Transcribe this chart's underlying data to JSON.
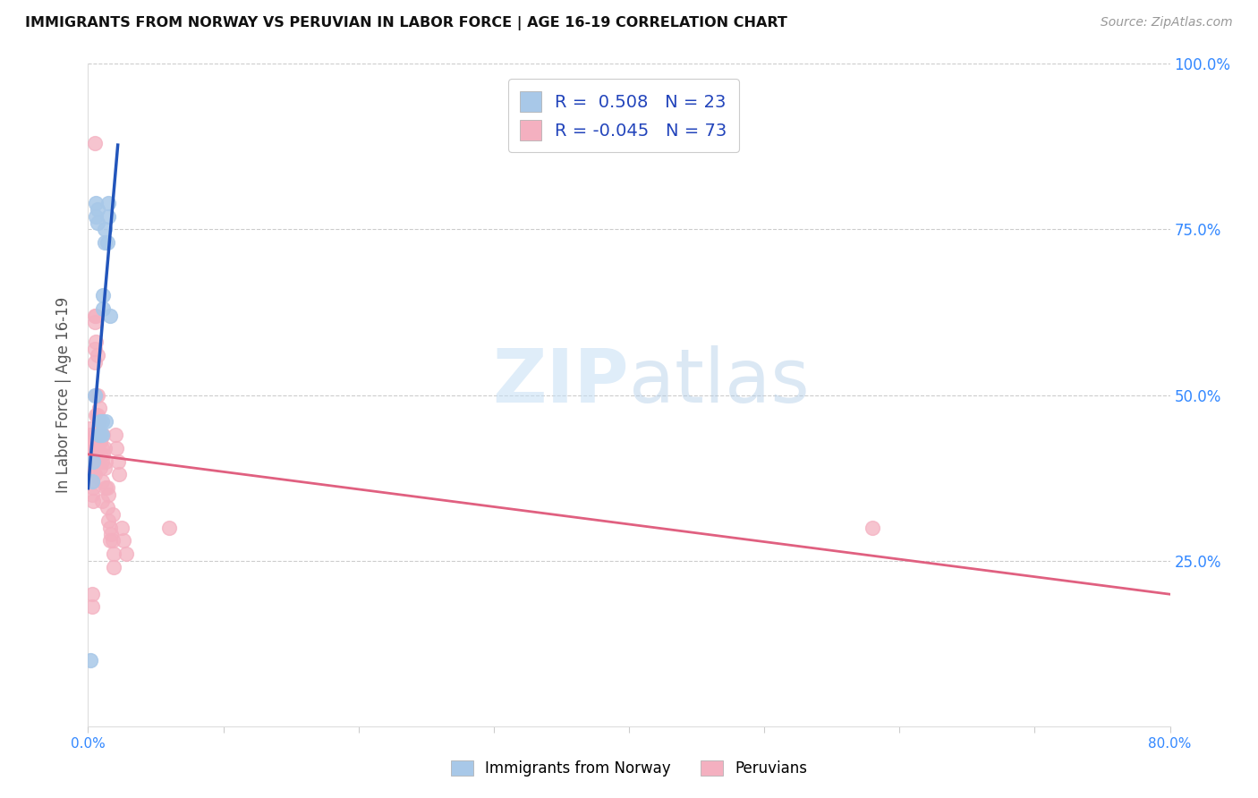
{
  "title": "IMMIGRANTS FROM NORWAY VS PERUVIAN IN LABOR FORCE | AGE 16-19 CORRELATION CHART",
  "source": "Source: ZipAtlas.com",
  "ylabel": "In Labor Force | Age 16-19",
  "xmin": 0.0,
  "xmax": 0.8,
  "ymin": 0.0,
  "ymax": 1.0,
  "norway_color": "#a8c8e8",
  "norway_edge": "#a8c8e8",
  "peru_color": "#f4b0c0",
  "peru_edge": "#f4b0c0",
  "norway_line_color": "#2255bb",
  "peru_line_color": "#e06080",
  "legend_norway_r": "0.508",
  "legend_norway_n": "23",
  "legend_peru_r": "-0.045",
  "legend_peru_n": "73",
  "norway_x": [
    0.003,
    0.004,
    0.005,
    0.006,
    0.006,
    0.007,
    0.007,
    0.008,
    0.008,
    0.009,
    0.009,
    0.01,
    0.01,
    0.011,
    0.011,
    0.012,
    0.012,
    0.013,
    0.014,
    0.015,
    0.015,
    0.016,
    0.002
  ],
  "norway_y": [
    0.37,
    0.4,
    0.5,
    0.79,
    0.77,
    0.78,
    0.76,
    0.44,
    0.44,
    0.44,
    0.46,
    0.46,
    0.44,
    0.63,
    0.65,
    0.73,
    0.75,
    0.46,
    0.73,
    0.79,
    0.77,
    0.62,
    0.1
  ],
  "peru_x": [
    0.001,
    0.001,
    0.002,
    0.002,
    0.002,
    0.003,
    0.003,
    0.003,
    0.003,
    0.003,
    0.004,
    0.004,
    0.004,
    0.004,
    0.004,
    0.005,
    0.005,
    0.005,
    0.005,
    0.005,
    0.005,
    0.005,
    0.005,
    0.006,
    0.006,
    0.006,
    0.006,
    0.006,
    0.007,
    0.007,
    0.007,
    0.007,
    0.008,
    0.008,
    0.008,
    0.008,
    0.009,
    0.009,
    0.009,
    0.009,
    0.01,
    0.01,
    0.01,
    0.01,
    0.01,
    0.011,
    0.011,
    0.012,
    0.012,
    0.013,
    0.013,
    0.014,
    0.014,
    0.015,
    0.015,
    0.016,
    0.016,
    0.017,
    0.018,
    0.018,
    0.019,
    0.019,
    0.02,
    0.021,
    0.022,
    0.023,
    0.025,
    0.026,
    0.028,
    0.06,
    0.58,
    0.003,
    0.003
  ],
  "peru_y": [
    0.45,
    0.43,
    0.44,
    0.42,
    0.4,
    0.43,
    0.41,
    0.39,
    0.37,
    0.35,
    0.42,
    0.4,
    0.38,
    0.36,
    0.34,
    0.88,
    0.62,
    0.61,
    0.57,
    0.55,
    0.42,
    0.4,
    0.38,
    0.62,
    0.58,
    0.5,
    0.47,
    0.44,
    0.56,
    0.5,
    0.47,
    0.44,
    0.48,
    0.46,
    0.44,
    0.41,
    0.43,
    0.43,
    0.41,
    0.39,
    0.44,
    0.42,
    0.4,
    0.37,
    0.34,
    0.44,
    0.41,
    0.42,
    0.39,
    0.4,
    0.36,
    0.36,
    0.33,
    0.35,
    0.31,
    0.3,
    0.28,
    0.29,
    0.32,
    0.28,
    0.26,
    0.24,
    0.44,
    0.42,
    0.4,
    0.38,
    0.3,
    0.28,
    0.26,
    0.3,
    0.3,
    0.2,
    0.18
  ]
}
